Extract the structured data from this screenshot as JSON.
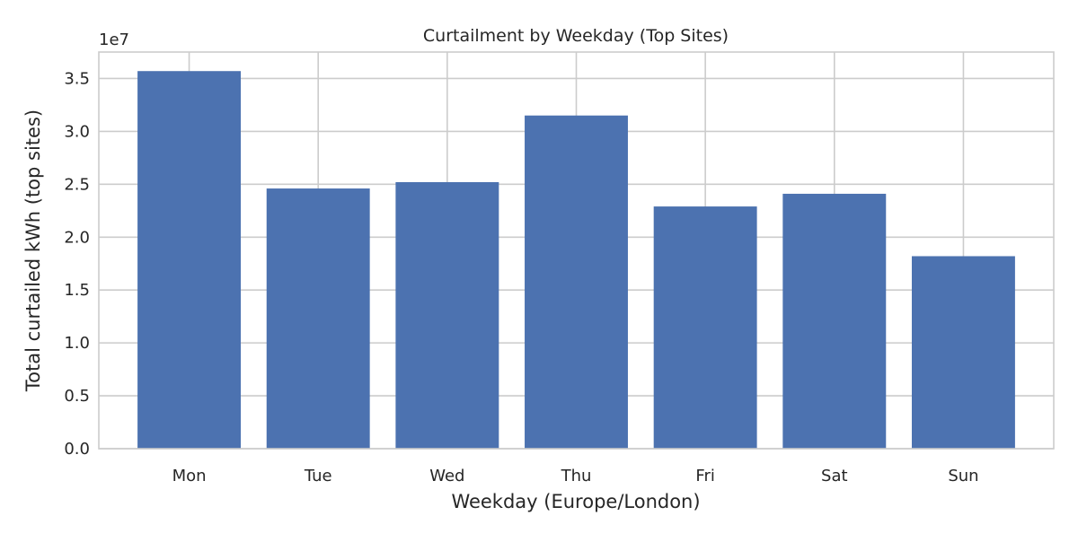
{
  "chart_data": {
    "type": "bar",
    "title": "Curtailment by Weekday (Top Sites)",
    "xlabel": "Weekday (Europe/London)",
    "ylabel": "Total curtailed kWh (top sites)",
    "offset_text": "1e7",
    "categories": [
      "Mon",
      "Tue",
      "Wed",
      "Thu",
      "Fri",
      "Sat",
      "Sun"
    ],
    "values": [
      35700000,
      24600000,
      25200000,
      31500000,
      22900000,
      24100000,
      18200000
    ],
    "ylim": [
      0,
      37500000
    ],
    "yticks": [
      0,
      5000000,
      10000000,
      15000000,
      20000000,
      25000000,
      30000000,
      35000000
    ],
    "ytick_labels": [
      "0.0",
      "0.5",
      "1.0",
      "1.5",
      "2.0",
      "2.5",
      "3.0",
      "3.5"
    ],
    "grid": true,
    "legend": "none",
    "colors": {
      "bar": "#4c72b0",
      "grid": "#cccccc",
      "axes_edge": "#cccccc",
      "text": "#262626"
    }
  }
}
